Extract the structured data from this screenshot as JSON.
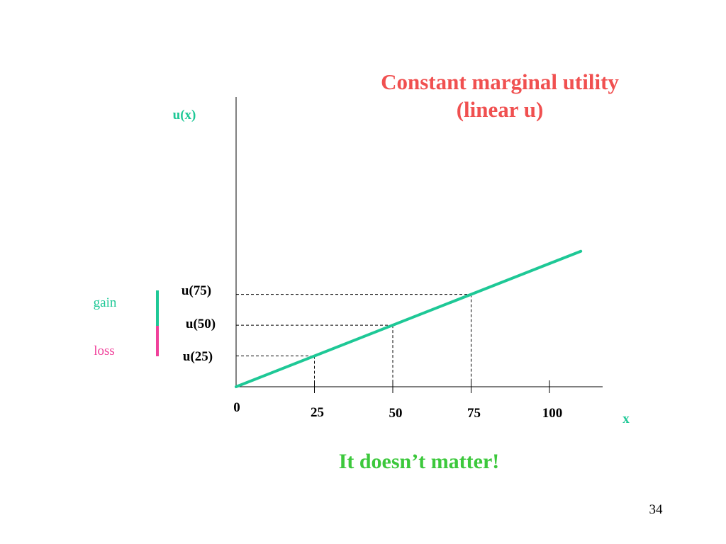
{
  "slide": {
    "title_line1": "Constant marginal utility",
    "title_line2": "(linear u)",
    "footer": "It doesn’t matter!",
    "page_number": "34"
  },
  "legend": {
    "gain": "gain",
    "loss": "loss"
  },
  "colors": {
    "title": "#f05050",
    "line": "#1ec896",
    "footer": "#3cc83c",
    "gain": "#1ec896",
    "loss": "#f0409a",
    "axis": "#000000"
  },
  "chart_data": {
    "type": "line",
    "xlabel": "x",
    "ylabel": "u(x)",
    "x_ticks": [
      0,
      25,
      50,
      75,
      100
    ],
    "x_tick_labels": [
      "0",
      "25",
      "50",
      "75",
      "100"
    ],
    "xlim": [
      0,
      117
    ],
    "ylim": [
      0,
      92
    ],
    "series": [
      {
        "x": [
          0,
          110
        ],
        "y": [
          0,
          42.7
        ]
      }
    ],
    "reference_points": [
      {
        "x": 25,
        "y": 9.7,
        "label": "u(25)"
      },
      {
        "x": 50,
        "y": 19.4,
        "label": "u(50)"
      },
      {
        "x": 75,
        "y": 29.1,
        "label": "u(75)"
      }
    ]
  }
}
